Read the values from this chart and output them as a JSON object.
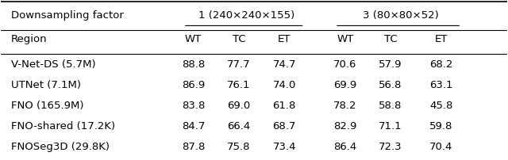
{
  "title_row": "Downsampling factor",
  "group1_header": "1 (240×240×155)",
  "group2_header": "3 (80×80×52)",
  "sub_headers": [
    "WT",
    "TC",
    "ET",
    "WT",
    "TC",
    "ET"
  ],
  "region_label": "Region",
  "rows": [
    [
      "V-Net-DS (5.7M)",
      "88.8",
      "77.7",
      "74.7",
      "70.6",
      "57.9",
      "68.2"
    ],
    [
      "UTNet (7.1M)",
      "86.9",
      "76.1",
      "74.0",
      "69.9",
      "56.8",
      "63.1"
    ],
    [
      "FNO (165.9M)",
      "83.8",
      "69.0",
      "61.8",
      "78.2",
      "58.8",
      "45.8"
    ],
    [
      "FNO-shared (17.2K)",
      "84.7",
      "66.4",
      "68.7",
      "82.9",
      "71.1",
      "59.8"
    ],
    [
      "FNOSeg3D (29.8K)",
      "87.8",
      "75.8",
      "73.4",
      "86.4",
      "72.3",
      "70.4"
    ]
  ],
  "bg_color": "#ffffff",
  "text_color": "#000000",
  "font_size": 9.5,
  "header_font_size": 9.5
}
